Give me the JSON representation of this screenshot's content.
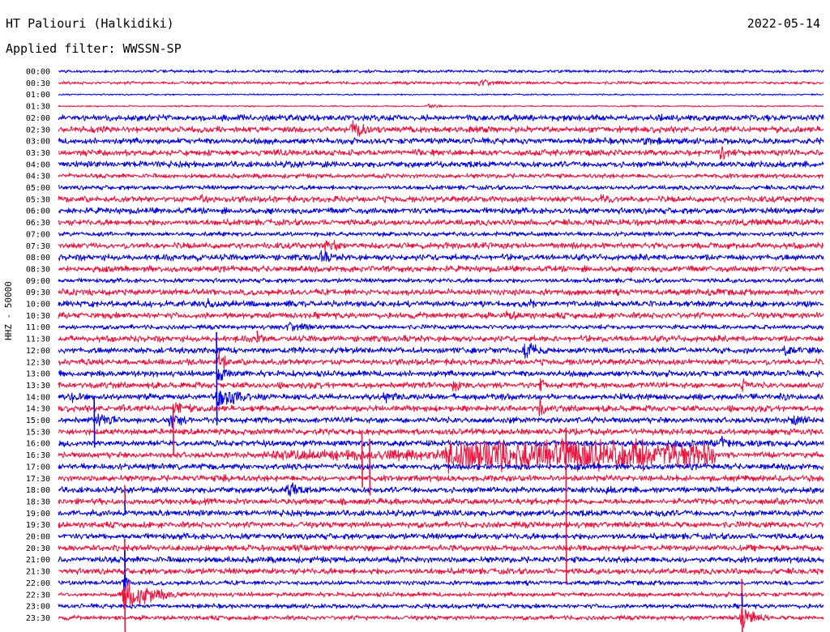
{
  "header": {
    "station": "HT Paliouri (Halkidiki)",
    "date": "2022-05-14",
    "filter": "Applied filter: WWSSN-SP"
  },
  "chart_data": {
    "type": "line",
    "title": "HT Paliouri (Halkidiki)",
    "subtitle": "Applied filter: WWSSN-SP",
    "ylabel": "HHZ - 50000",
    "colors": {
      "even_row": "#0000e6",
      "odd_row": "#f0103c",
      "background": "#ffffff"
    },
    "rows": [
      "00:00",
      "00:30",
      "01:00",
      "01:30",
      "02:00",
      "02:30",
      "03:00",
      "03:30",
      "04:00",
      "04:30",
      "05:00",
      "05:30",
      "06:00",
      "06:30",
      "07:00",
      "07:30",
      "08:00",
      "08:30",
      "09:00",
      "09:30",
      "10:00",
      "10:30",
      "11:00",
      "11:30",
      "12:00",
      "12:30",
      "13:00",
      "13:30",
      "14:00",
      "14:30",
      "15:00",
      "15:30",
      "16:00",
      "16:30",
      "17:00",
      "17:30",
      "18:00",
      "18:30",
      "19:00",
      "19:30",
      "20:00",
      "20:30",
      "21:00",
      "21:30",
      "22:00",
      "22:30",
      "23:00",
      "23:30"
    ],
    "row_duration_min": 30,
    "background_noise": [
      2,
      2,
      1,
      1,
      4,
      4,
      4,
      4,
      4,
      3,
      3,
      4,
      4,
      4,
      3,
      4,
      4,
      4,
      3,
      4,
      4,
      4,
      3,
      4,
      4,
      4,
      4,
      4,
      4,
      4,
      4,
      4,
      4,
      4,
      4,
      4,
      4,
      4,
      4,
      4,
      4,
      4,
      4,
      4,
      3,
      3,
      3,
      3
    ],
    "events": [
      {
        "row": "00:30",
        "minute": 16.5,
        "amp": 7,
        "dur": 1.5
      },
      {
        "row": "01:30",
        "minute": 14.5,
        "amp": 6,
        "dur": 0.8
      },
      {
        "row": "02:00",
        "minute": 23.5,
        "amp": 6,
        "dur": 2
      },
      {
        "row": "02:00",
        "minute": 27.8,
        "amp": 8,
        "dur": 0.8
      },
      {
        "row": "02:30",
        "minute": 11.5,
        "amp": 13,
        "dur": 1.5
      },
      {
        "row": "02:30",
        "minute": 14,
        "amp": 4,
        "dur": 2
      },
      {
        "row": "02:30",
        "minute": 22,
        "amp": 5,
        "dur": 2
      },
      {
        "row": "03:00",
        "minute": 23,
        "amp": 7,
        "dur": 3
      },
      {
        "row": "03:30",
        "minute": 8.5,
        "amp": 6,
        "dur": 1.5
      },
      {
        "row": "03:30",
        "minute": 14,
        "amp": 6,
        "dur": 1.5
      },
      {
        "row": "03:30",
        "minute": 22,
        "amp": 5,
        "dur": 1.5
      },
      {
        "row": "03:30",
        "minute": 26,
        "amp": 14,
        "dur": 0.6
      },
      {
        "row": "04:00",
        "minute": 3.2,
        "amp": 7,
        "dur": 2
      },
      {
        "row": "04:00",
        "minute": 9,
        "amp": 5,
        "dur": 2
      },
      {
        "row": "04:30",
        "minute": 0.4,
        "amp": 4,
        "dur": 1
      },
      {
        "row": "05:30",
        "minute": 5.5,
        "amp": 7,
        "dur": 2
      },
      {
        "row": "05:30",
        "minute": 21.3,
        "amp": 9,
        "dur": 1.5
      },
      {
        "row": "07:30",
        "minute": 10.5,
        "amp": 10,
        "dur": 1.5
      },
      {
        "row": "07:30",
        "minute": 16.8,
        "amp": 9,
        "dur": 1.5
      },
      {
        "row": "08:00",
        "minute": 5.5,
        "amp": 7,
        "dur": 0.8
      },
      {
        "row": "08:00",
        "minute": 10.3,
        "amp": 11,
        "dur": 1.2
      },
      {
        "row": "09:30",
        "minute": 25.5,
        "amp": 7,
        "dur": 2
      },
      {
        "row": "10:00",
        "minute": 5.8,
        "amp": 8,
        "dur": 2
      },
      {
        "row": "10:00",
        "minute": 18.5,
        "amp": 7,
        "dur": 1
      },
      {
        "row": "10:00",
        "minute": 23,
        "amp": 8,
        "dur": 1
      },
      {
        "row": "10:30",
        "minute": 17.5,
        "amp": 7,
        "dur": 3
      },
      {
        "row": "11:00",
        "minute": 9,
        "amp": 8,
        "dur": 2
      },
      {
        "row": "11:30",
        "minute": 7.8,
        "amp": 7,
        "dur": 1.5
      },
      {
        "row": "11:30",
        "minute": 13.5,
        "amp": 5,
        "dur": 2
      },
      {
        "row": "12:00",
        "minute": 18.3,
        "amp": 14,
        "dur": 1.5
      },
      {
        "row": "12:00",
        "minute": 28.5,
        "amp": 7,
        "dur": 2
      },
      {
        "row": "12:30",
        "minute": 6.3,
        "amp": 14,
        "dur": 0.8
      },
      {
        "row": "12:30",
        "minute": 20,
        "amp": 6,
        "dur": 1.5
      },
      {
        "row": "13:00",
        "minute": 6.3,
        "amp": 16,
        "dur": 0.8
      },
      {
        "row": "13:30",
        "minute": 15.5,
        "amp": 9,
        "dur": 1.2
      },
      {
        "row": "13:30",
        "minute": 26.8,
        "amp": 9,
        "dur": 1
      },
      {
        "row": "13:30",
        "minute": 18.9,
        "amp": 16,
        "dur": 0.3
      },
      {
        "row": "14:00",
        "minute": 0.5,
        "amp": 8,
        "dur": 1.5
      },
      {
        "row": "14:00",
        "minute": 6.2,
        "amp": 18,
        "dur": 2
      },
      {
        "row": "14:00",
        "minute": 12.8,
        "amp": 9,
        "dur": 1.5
      },
      {
        "row": "14:00",
        "minute": 17,
        "amp": 5,
        "dur": 1
      },
      {
        "row": "14:00",
        "minute": 28.3,
        "amp": 7,
        "dur": 1
      },
      {
        "row": "14:30",
        "minute": 2.5,
        "amp": 7,
        "dur": 1
      },
      {
        "row": "14:30",
        "minute": 4.6,
        "amp": 12,
        "dur": 1.5
      },
      {
        "row": "14:30",
        "minute": 18.9,
        "amp": 20,
        "dur": 0.3
      },
      {
        "row": "15:00",
        "minute": 1.5,
        "amp": 10,
        "dur": 2
      },
      {
        "row": "15:00",
        "minute": 4.4,
        "amp": 12,
        "dur": 1.5
      },
      {
        "row": "15:00",
        "minute": 28.8,
        "amp": 9,
        "dur": 1.5
      },
      {
        "row": "16:00",
        "minute": 24,
        "amp": 6,
        "dur": 5
      },
      {
        "row": "16:00",
        "minute": 26,
        "amp": 9,
        "dur": 1.5
      },
      {
        "row": "16:30",
        "minute": 8.5,
        "amp": 9,
        "dur": 10
      },
      {
        "row": "16:30",
        "minute": 15.3,
        "amp": 26,
        "dur": 9
      },
      {
        "row": "16:30",
        "minute": 19.8,
        "amp": 22,
        "dur": 7
      },
      {
        "row": "17:30",
        "minute": 6.5,
        "amp": 6,
        "dur": 2
      },
      {
        "row": "18:00",
        "minute": 9,
        "amp": 12,
        "dur": 1.5
      },
      {
        "row": "18:00",
        "minute": 21.5,
        "amp": 6,
        "dur": 2
      },
      {
        "row": "19:00",
        "minute": 15.5,
        "amp": 6,
        "dur": 1.5
      },
      {
        "row": "19:00",
        "minute": 23.5,
        "amp": 6,
        "dur": 2
      },
      {
        "row": "19:30",
        "minute": 12,
        "amp": 5,
        "dur": 1.5
      },
      {
        "row": "20:30",
        "minute": 8,
        "amp": 6,
        "dur": 1
      },
      {
        "row": "21:00",
        "minute": 1.5,
        "amp": 5,
        "dur": 2
      },
      {
        "row": "22:00",
        "minute": 2.6,
        "amp": 12,
        "dur": 0.4
      },
      {
        "row": "22:30",
        "minute": 2.6,
        "amp": 24,
        "dur": 2.5
      },
      {
        "row": "23:00",
        "minute": 17.5,
        "amp": 5,
        "dur": 1
      },
      {
        "row": "23:30",
        "minute": 26.8,
        "amp": 14,
        "dur": 1.5
      }
    ],
    "spikes": [
      {
        "row": "21:30",
        "minute": 2.6,
        "up": 40,
        "down": 0
      },
      {
        "row": "22:00",
        "minute": 2.6,
        "up": 40,
        "down": 0
      },
      {
        "row": "22:30",
        "minute": 2.6,
        "up": 10,
        "down": 50
      },
      {
        "row": "16:30",
        "minute": 19.9,
        "up": 34,
        "down": 160
      },
      {
        "row": "14:00",
        "minute": 6.2,
        "up": 80,
        "down": 35
      },
      {
        "row": "14:00",
        "minute": 6.2,
        "up": 0,
        "down": 0
      },
      {
        "row": "15:30",
        "minute": 4.5,
        "up": 34,
        "down": 30
      },
      {
        "row": "15:00",
        "minute": 1.4,
        "up": 30,
        "down": 34
      },
      {
        "row": "19:00",
        "minute": 2.6,
        "up": 16,
        "down": 0
      },
      {
        "row": "18:30",
        "minute": 2.6,
        "up": 20,
        "down": 0
      },
      {
        "row": "23:30",
        "minute": 26.8,
        "up": 48,
        "down": 20
      },
      {
        "row": "23:00",
        "minute": 26.8,
        "up": 16,
        "down": 0
      },
      {
        "row": "16:30",
        "minute": 11.9,
        "up": 28,
        "down": 40
      },
      {
        "row": "16:30",
        "minute": 12.2,
        "up": 20,
        "down": 50
      },
      {
        "row": "11:30",
        "minute": 7.8,
        "up": 10,
        "down": 0
      }
    ]
  }
}
